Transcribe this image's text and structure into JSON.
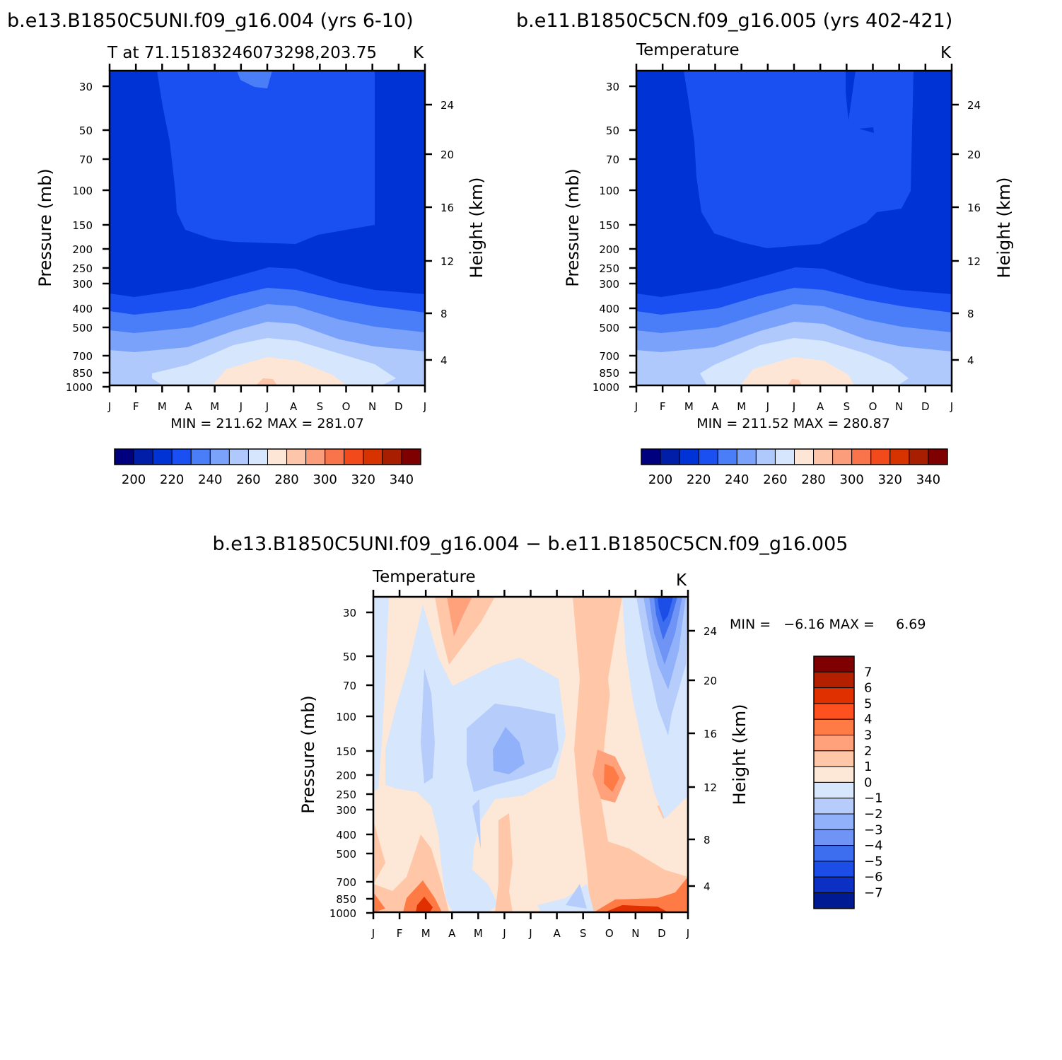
{
  "colors": {
    "temp_scale": [
      "#00007f",
      "#001ea8",
      "#0033d6",
      "#1a4ff2",
      "#4a7ef9",
      "#7aa2fb",
      "#b0c9fd",
      "#d6e6fd",
      "#fde6d6",
      "#fdc5a9",
      "#fb9c7a",
      "#f9744a",
      "#f24a1a",
      "#d63300",
      "#a81e00",
      "#7f0000"
    ],
    "diff_scale": [
      "#7f0000",
      "#b22000",
      "#e03000",
      "#ff5020",
      "#ff7b45",
      "#ffa27c",
      "#ffc7a8",
      "#fde7d6",
      "#d6e6fd",
      "#b6cdfb",
      "#91b2fa",
      "#6f94f6",
      "#3d6ef0",
      "#1c4de6",
      "#0c2fc4",
      "#001a94"
    ]
  },
  "chart_data": [
    {
      "type": "contour",
      "panel": "top-left",
      "title": "b.e13.B1850C5UNI.f09_g16.004 (yrs 6-10)",
      "subtitle_left": "T at 71.15183246073298,203.75",
      "subtitle_right": "K",
      "xlabel": "",
      "ylabel": "Pressure (mb)",
      "ylabel_right": "Height (km)",
      "x_ticks": [
        "J",
        "F",
        "M",
        "A",
        "M",
        "J",
        "J",
        "A",
        "S",
        "O",
        "N",
        "D",
        "J"
      ],
      "y_ticks": [
        "30",
        "50",
        "70",
        "100",
        "150",
        "200",
        "250",
        "300",
        "400",
        "500",
        "700",
        "850",
        "1000"
      ],
      "y_ticks_right": [
        "24",
        "20",
        "16",
        "12",
        "8",
        "4"
      ],
      "stats": "MIN = 211.62 MAX = 281.07",
      "colorbar_labels": [
        "200",
        "220",
        "240",
        "260",
        "280",
        "300",
        "320",
        "340"
      ],
      "min": 211.62,
      "max": 281.07
    },
    {
      "type": "contour",
      "panel": "top-right",
      "title": "b.e11.B1850C5CN.f09_g16.005 (yrs 402-421)",
      "subtitle_left": "Temperature",
      "subtitle_right": "K",
      "ylabel": "Pressure (mb)",
      "ylabel_right": "Height (km)",
      "x_ticks": [
        "J",
        "F",
        "M",
        "A",
        "M",
        "J",
        "J",
        "A",
        "S",
        "O",
        "N",
        "D",
        "J"
      ],
      "y_ticks": [
        "30",
        "50",
        "70",
        "100",
        "150",
        "200",
        "250",
        "300",
        "400",
        "500",
        "700",
        "850",
        "1000"
      ],
      "y_ticks_right": [
        "24",
        "20",
        "16",
        "12",
        "8",
        "4"
      ],
      "stats": "MIN = 211.52 MAX = 280.87",
      "colorbar_labels": [
        "200",
        "220",
        "240",
        "260",
        "280",
        "300",
        "320",
        "340"
      ],
      "min": 211.52,
      "max": 280.87
    },
    {
      "type": "contour",
      "panel": "bottom",
      "title": "b.e13.B1850C5UNI.f09_g16.004 − b.e11.B1850C5CN.f09_g16.005",
      "subtitle_left": "Temperature",
      "subtitle_right": "K",
      "ylabel": "Pressure (mb)",
      "ylabel_right": "Height (km)",
      "x_ticks": [
        "J",
        "F",
        "M",
        "A",
        "M",
        "J",
        "J",
        "A",
        "S",
        "O",
        "N",
        "D",
        "J"
      ],
      "y_ticks": [
        "30",
        "50",
        "70",
        "100",
        "150",
        "200",
        "250",
        "300",
        "400",
        "500",
        "700",
        "850",
        "1000"
      ],
      "y_ticks_right": [
        "24",
        "20",
        "16",
        "12",
        "8",
        "4"
      ],
      "stats": "MIN =   −6.16 MAX =     6.69",
      "colorbar_labels": [
        "7",
        "6",
        "5",
        "4",
        "3",
        "2",
        "1",
        "0",
        "−1",
        "−2",
        "−3",
        "−4",
        "−5",
        "−6",
        "−7"
      ],
      "min": -6.16,
      "max": 6.69
    }
  ]
}
